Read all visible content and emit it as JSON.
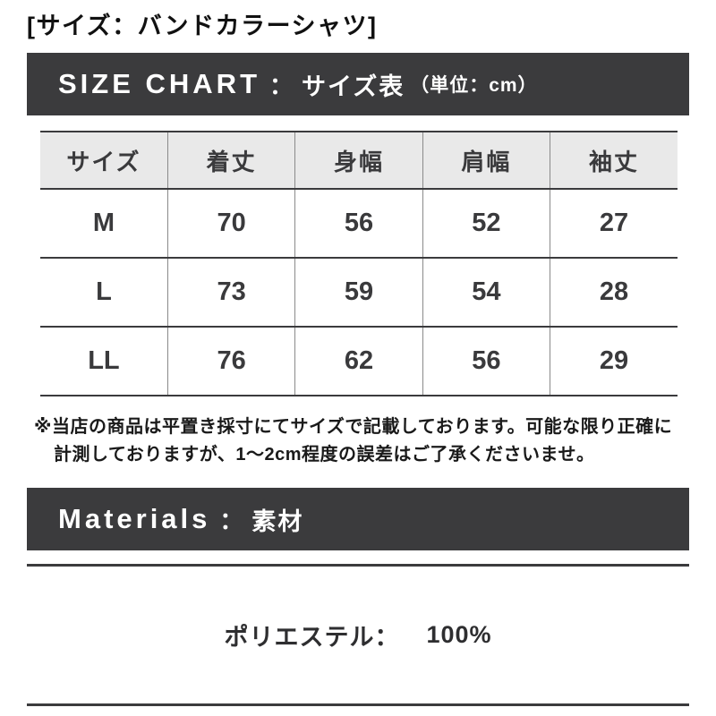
{
  "page": {
    "title": "[サイズ：バンドカラーシャツ]"
  },
  "size_chart": {
    "heading_en": "SIZE CHART",
    "heading_separator": "：",
    "heading_jp": "サイズ表",
    "heading_unit": "（単位：cm）",
    "table": {
      "columns": [
        "サイズ",
        "着丈",
        "身幅",
        "肩幅",
        "袖丈"
      ],
      "rows": [
        {
          "size": "M",
          "values": [
            "70",
            "56",
            "52",
            "27"
          ]
        },
        {
          "size": "L",
          "values": [
            "73",
            "59",
            "54",
            "28"
          ]
        },
        {
          "size": "LL",
          "values": [
            "76",
            "62",
            "56",
            "29"
          ]
        }
      ]
    },
    "note_line1": "※当店の商品は平置き採寸にてサイズで記載しております。可能な限り正確に",
    "note_line2": "計測しておりますが、1～2cm程度の誤差はご了承くださいませ。"
  },
  "materials": {
    "heading_en": "Materials",
    "heading_separator": "：",
    "heading_jp": "素材",
    "items": [
      {
        "name": "ポリエステル：",
        "value": "100%"
      }
    ]
  },
  "colors": {
    "header_bar_bg": "#3b3b3d",
    "table_header_bg": "#e9e9e9",
    "border_dark": "#3b3b3d"
  }
}
